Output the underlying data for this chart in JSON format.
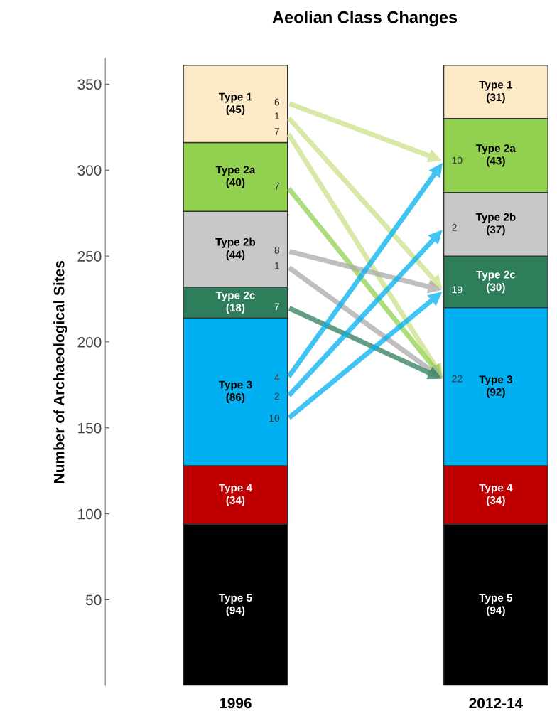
{
  "chart_data": {
    "type": "bar",
    "stacked": true,
    "title": "Aeolian Class Changes",
    "ylabel": "Number of Archaeological Sites",
    "categories": [
      "1996",
      "2012-14"
    ],
    "series": [
      {
        "name": "Type 5",
        "color": "#000000",
        "values": [
          94,
          94
        ],
        "value_labels": [
          "(94)",
          "(94)"
        ]
      },
      {
        "name": "Type 4",
        "color": "#c00000",
        "values": [
          34,
          34
        ],
        "value_labels": [
          "(34)",
          "(34)"
        ]
      },
      {
        "name": "Type 3",
        "color": "#00b0f0",
        "values": [
          86,
          92
        ],
        "value_labels": [
          "(86)",
          "(92)"
        ]
      },
      {
        "name": "Type 2c",
        "color": "#2e7d5b",
        "values": [
          18,
          30
        ],
        "value_labels": [
          "(18)",
          "(30)"
        ]
      },
      {
        "name": "Type 2b",
        "color": "#c8c8c8",
        "values": [
          44,
          37
        ],
        "value_labels": [
          "(44)",
          "(37)"
        ]
      },
      {
        "name": "Type 2a",
        "color": "#92d050",
        "values": [
          40,
          43
        ],
        "value_labels": [
          "(40)",
          "(43)"
        ]
      },
      {
        "name": "Type 1",
        "color": "#fdebc8",
        "values": [
          45,
          31
        ],
        "value_labels": [
          "(45)",
          "(31)"
        ]
      }
    ],
    "ylim": [
      0,
      365
    ],
    "yticks": [
      50,
      100,
      150,
      200,
      250,
      300,
      350
    ],
    "grid": false,
    "legend": false,
    "annotations": [
      "6",
      "1",
      "7",
      "7",
      "8",
      "1",
      "7",
      "4",
      "2",
      "10",
      "10",
      "2",
      "19",
      "22"
    ]
  }
}
